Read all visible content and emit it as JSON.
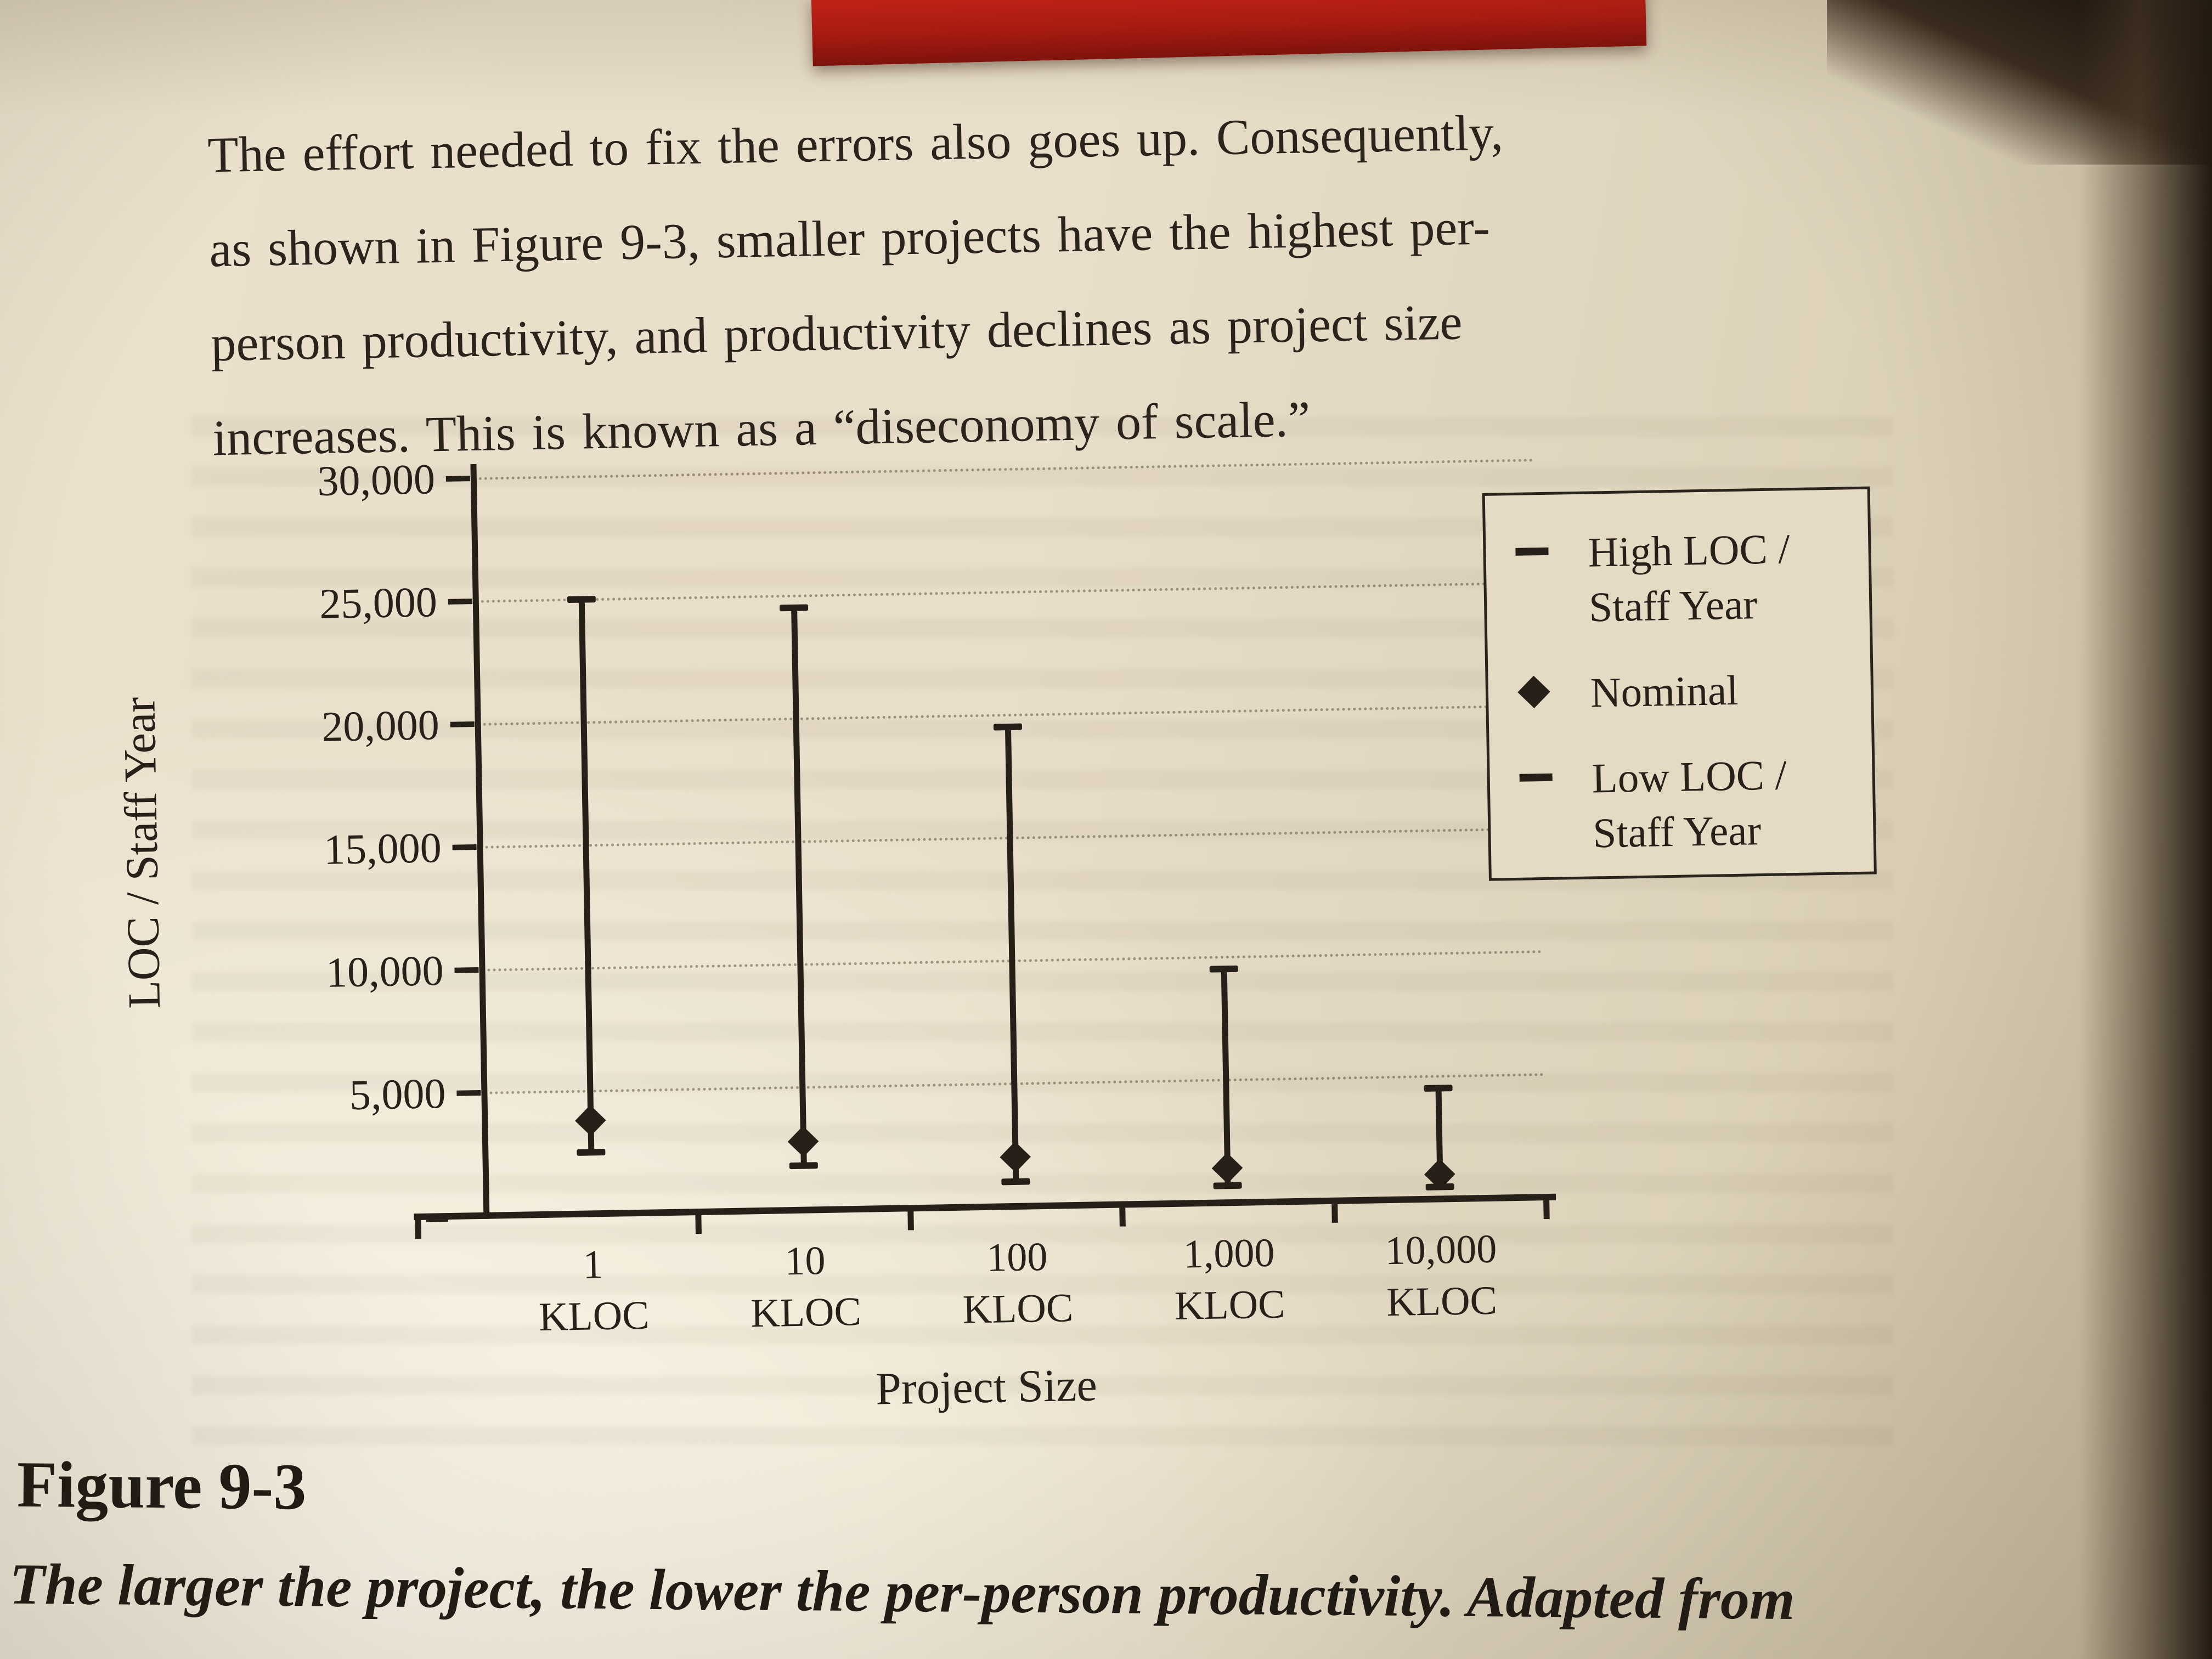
{
  "page": {
    "paragraph_lines": [
      "The effort needed to fix the errors also goes up. Consequently,",
      "as shown in Figure 9-3, smaller projects have the highest per-",
      "person productivity, and productivity declines as project size",
      "increases. This is known as a “diseconomy of scale.”"
    ],
    "figure_label": "Figure 9-3",
    "figure_caption": "The larger the project, the lower the per-person productivity. Adapted from"
  },
  "chart_data": {
    "type": "bar",
    "subtype": "high-low-range",
    "title": "",
    "categories": [
      "1 KLOC",
      "10 KLOC",
      "100 KLOC",
      "1,000 KLOC",
      "10,000 KLOC"
    ],
    "category_values": [
      "1",
      "10",
      "100",
      "1,000",
      "10,000"
    ],
    "category_unit": "KLOC",
    "series": [
      {
        "name": "High LOC / Staff Year",
        "values": [
          25000,
          24500,
          19500,
          9500,
          4500
        ]
      },
      {
        "name": "Nominal",
        "values": [
          3800,
          2800,
          2000,
          1400,
          1000
        ]
      },
      {
        "name": "Low LOC / Staff Year",
        "values": [
          2500,
          1800,
          1000,
          700,
          500
        ]
      }
    ],
    "xlabel": "Project Size",
    "ylabel": "LOC / Staff Year",
    "ylim": [
      0,
      30000
    ],
    "yticks": [
      {
        "label": "–",
        "value": 0
      },
      {
        "label": "5,000",
        "value": 5000
      },
      {
        "label": "10,000",
        "value": 10000
      },
      {
        "label": "15,000",
        "value": 15000
      },
      {
        "label": "20,000",
        "value": 20000
      },
      {
        "label": "25,000",
        "value": 25000
      },
      {
        "label": "30,000",
        "value": 30000
      }
    ],
    "grid": true,
    "legend_position": "top-right",
    "legend": [
      {
        "icon": "dash",
        "label_lines": [
          "High LOC /",
          "Staff Year"
        ]
      },
      {
        "icon": "diamond",
        "label_lines": [
          "Nominal"
        ]
      },
      {
        "icon": "dash",
        "label_lines": [
          "Low LOC /",
          "Staff Year"
        ]
      }
    ],
    "ink_color": "#262019",
    "paper_color": "#e8dec9"
  },
  "photo": {
    "book_cover_color": "#a81b12"
  }
}
